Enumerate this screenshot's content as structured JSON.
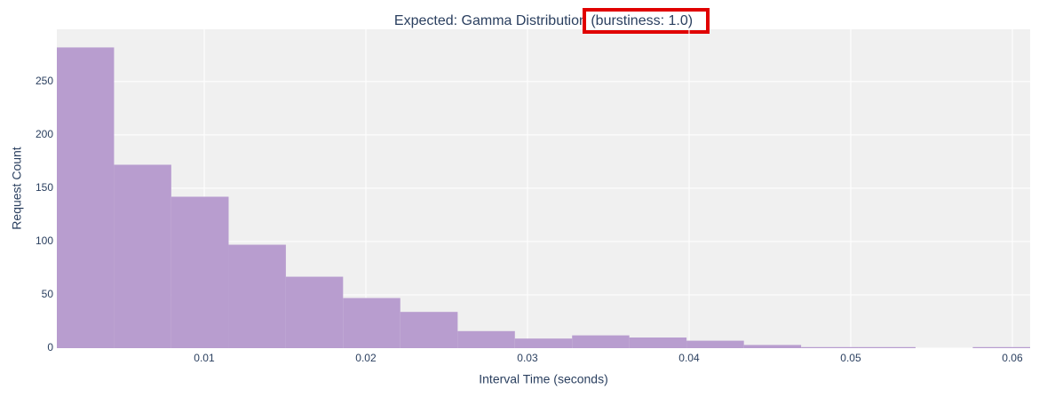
{
  "chart_data": {
    "type": "histogram",
    "title": "Expected: Gamma Distribution (burstiness: 1.0)",
    "x_label": "Interval Time (seconds)",
    "y_label": "Request Count",
    "bins": [
      0.00088,
      0.00442,
      0.00796,
      0.01151,
      0.01505,
      0.01859,
      0.02213,
      0.02568,
      0.02922,
      0.03276,
      0.0363,
      0.03984,
      0.04339,
      0.04693,
      0.05047,
      0.05401,
      0.05755,
      0.0611
    ],
    "values": [
      282,
      172,
      142,
      97,
      67,
      47,
      34,
      16,
      9,
      12,
      10,
      7,
      3,
      1,
      1,
      0,
      1
    ],
    "color": "#b89dcf",
    "xlim": [
      0.00088,
      0.0611
    ],
    "xticks": [
      0.01,
      0.02,
      0.03,
      0.04,
      0.05,
      0.06
    ],
    "ylim": [
      0,
      299
    ],
    "yticks": [
      0,
      50,
      100,
      150,
      200,
      250
    ],
    "grid": true
  }
}
